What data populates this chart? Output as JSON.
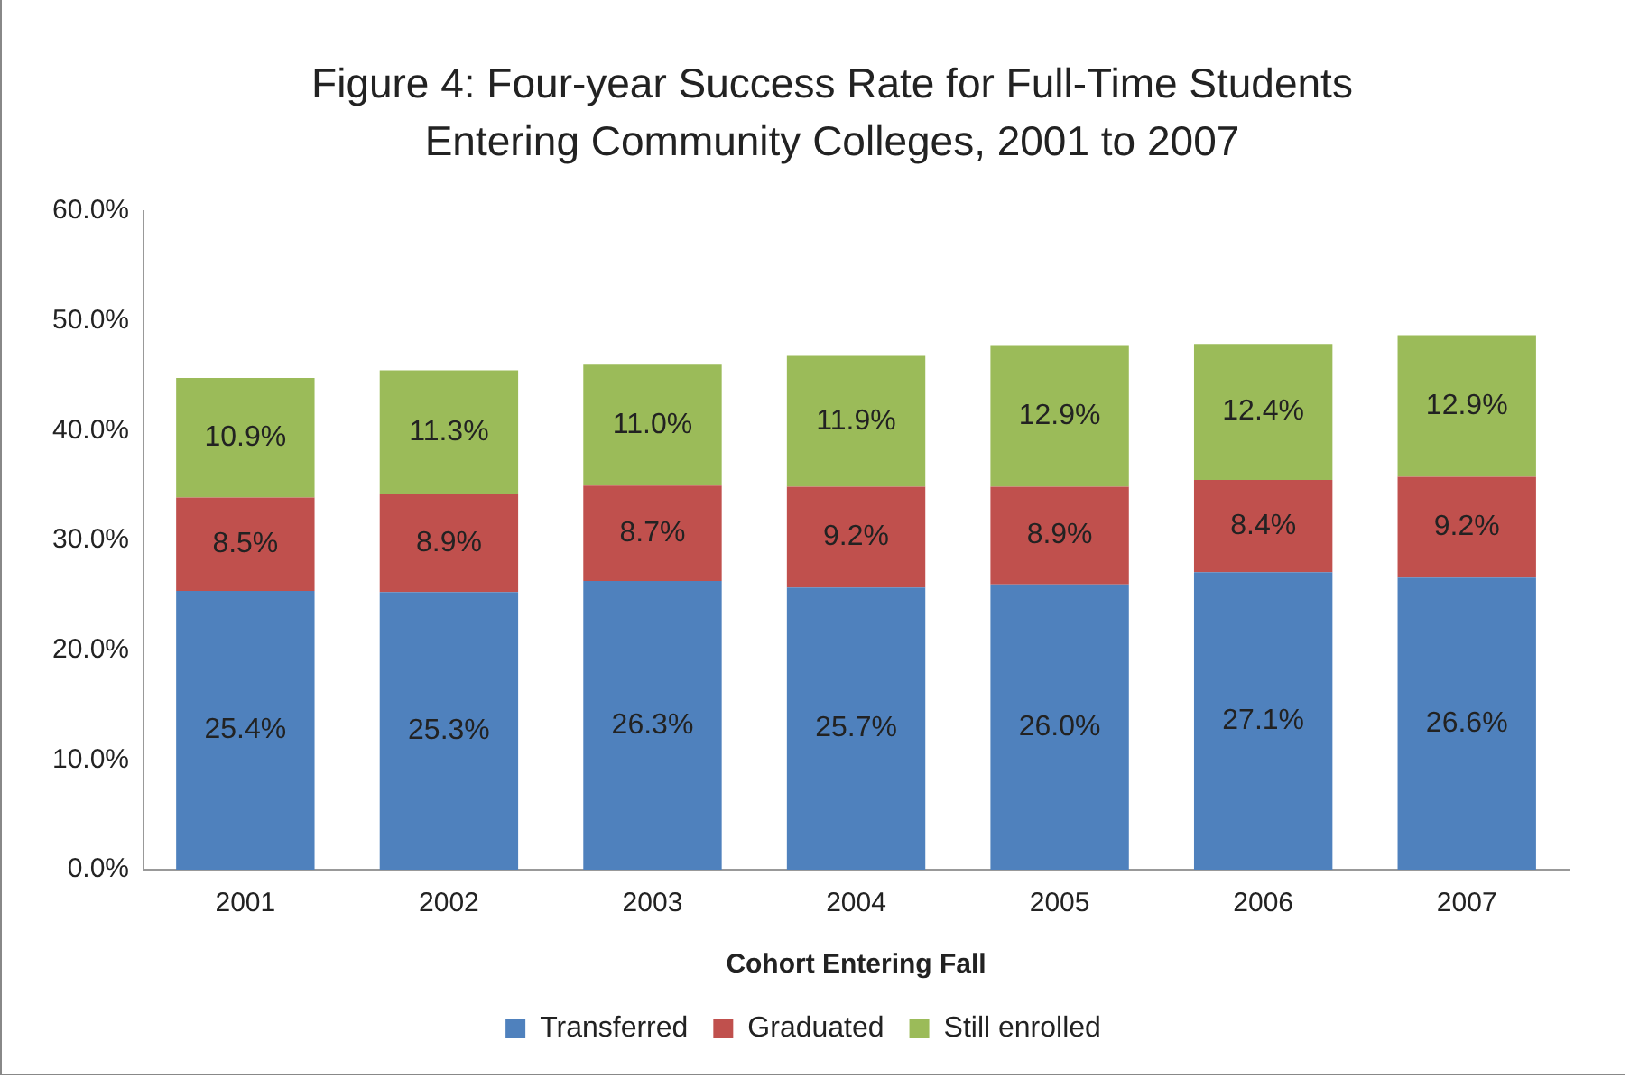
{
  "chart_data": {
    "type": "bar",
    "title": "Figure 4: Four-year Success Rate for Full-Time Students Entering Community Colleges, 2001 to 2007",
    "xlabel": "Cohort Entering Fall",
    "categories": [
      "2001",
      "2002",
      "2003",
      "2004",
      "2005",
      "2006",
      "2007"
    ],
    "stacked": true,
    "series": [
      {
        "name": "Transferred",
        "color": "#4f81bd",
        "values": [
          25.4,
          25.3,
          26.3,
          25.7,
          26.0,
          27.1,
          26.6
        ],
        "value_labels": [
          "25.4%",
          "25.3%",
          "26.3%",
          "25.7%",
          "26.0%",
          "27.1%",
          "26.6%"
        ]
      },
      {
        "name": "Graduated",
        "color": "#c0504d",
        "values": [
          8.5,
          8.9,
          8.7,
          9.2,
          8.9,
          8.4,
          9.2
        ],
        "value_labels": [
          "8.5%",
          "8.9%",
          "8.7%",
          "9.2%",
          "8.9%",
          "8.4%",
          "9.2%"
        ]
      },
      {
        "name": "Still enrolled",
        "color": "#9bbb59",
        "values": [
          10.9,
          11.3,
          11.0,
          11.9,
          12.9,
          12.4,
          12.9
        ],
        "value_labels": [
          "10.9%",
          "11.3%",
          "11.0%",
          "11.9%",
          "12.9%",
          "12.4%",
          "12.9%"
        ]
      }
    ],
    "ylim": [
      0,
      60
    ],
    "yticks": [
      {
        "value": 0,
        "label": "0.0%"
      },
      {
        "value": 10,
        "label": "10.0%"
      },
      {
        "value": 20,
        "label": "20.0%"
      },
      {
        "value": 30,
        "label": "30.0%"
      },
      {
        "value": 40,
        "label": "40.0%"
      },
      {
        "value": 50,
        "label": "50.0%"
      },
      {
        "value": 60,
        "label": "60.0%"
      }
    ],
    "grid": false,
    "legend": "bottom"
  }
}
